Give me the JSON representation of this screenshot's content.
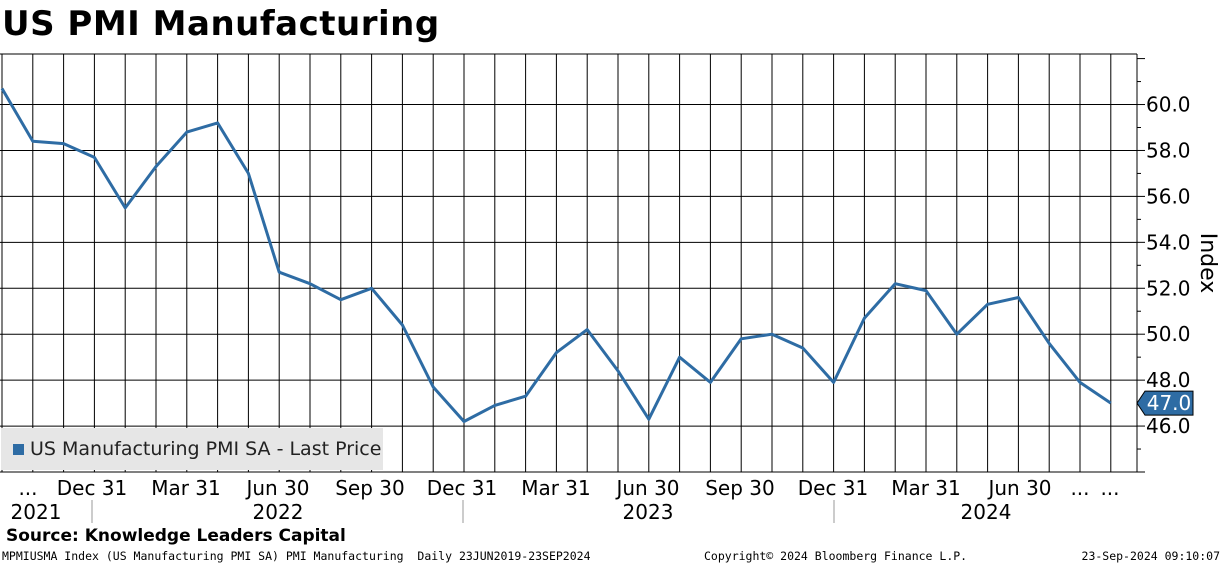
{
  "title": "US PMI Manufacturing",
  "legend": {
    "label": "US Manufacturing PMI SA - Last Price",
    "color": "#2e6ca4"
  },
  "source": "Source: Knowledge Leaders Capital",
  "footer": {
    "left": "MPMIUSMA Index (US Manufacturing PMI SA) PMI Manufacturing  Daily 23JUN2019-23SEP2024",
    "center": "Copyright© 2024 Bloomberg Finance L.P.",
    "right": "23-Sep-2024 09:10:07"
  },
  "chart_data": {
    "type": "line",
    "ylabel": "Index",
    "ylim": [
      44.0,
      62.2
    ],
    "yticks": [
      46.0,
      48.0,
      50.0,
      52.0,
      54.0,
      56.0,
      58.0,
      60.0
    ],
    "ytick_labels": [
      "46.0",
      "48.0",
      "50.0",
      "52.0",
      "54.0",
      "56.0",
      "58.0",
      "60.0"
    ],
    "grid": true,
    "legend_position": "bottom-left",
    "last_value_label": "47.0",
    "x_tick_labels": [
      "...",
      "Dec 31",
      "Mar 31",
      "Jun 30",
      "Sep 30",
      "Dec 31",
      "Mar 31",
      "Jun 30",
      "Sep 30",
      "Dec 31",
      "Mar 31",
      "Jun 30",
      "...",
      "..."
    ],
    "year_labels": [
      "2021",
      "2022",
      "2023",
      "2024"
    ],
    "series": [
      {
        "name": "US Manufacturing PMI SA - Last Price",
        "color": "#2e6ca4",
        "x": [
          "2021-09",
          "2021-10",
          "2021-11",
          "2021-12",
          "2022-01",
          "2022-02",
          "2022-03",
          "2022-04",
          "2022-05",
          "2022-06",
          "2022-07",
          "2022-08",
          "2022-09",
          "2022-10",
          "2022-11",
          "2022-12",
          "2023-01",
          "2023-02",
          "2023-03",
          "2023-04",
          "2023-05",
          "2023-06",
          "2023-07",
          "2023-08",
          "2023-09",
          "2023-10",
          "2023-11",
          "2023-12",
          "2024-01",
          "2024-02",
          "2024-03",
          "2024-04",
          "2024-05",
          "2024-06",
          "2024-07",
          "2024-08",
          "2024-09"
        ],
        "values": [
          60.7,
          58.4,
          58.3,
          57.7,
          55.5,
          57.3,
          58.8,
          59.2,
          57.0,
          52.7,
          52.2,
          51.5,
          52.0,
          50.4,
          47.7,
          46.2,
          46.9,
          47.3,
          49.2,
          50.2,
          48.4,
          46.3,
          49.0,
          47.9,
          49.8,
          50.0,
          49.4,
          47.9,
          50.7,
          52.2,
          51.9,
          50.0,
          51.3,
          51.6,
          49.6,
          47.9,
          47.0
        ]
      }
    ]
  }
}
